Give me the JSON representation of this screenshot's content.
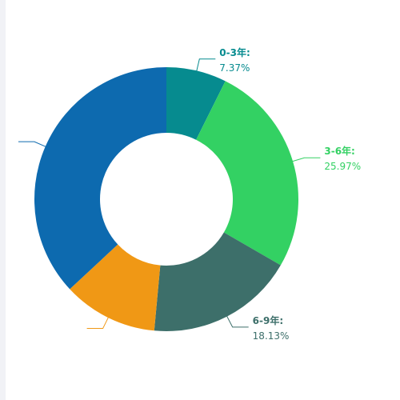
{
  "chart_data": {
    "type": "pie",
    "variant": "donut",
    "slices": [
      {
        "label": "0-3年:",
        "percent": "7.37%",
        "value": 7.37,
        "color": "#068b8f",
        "label_color": "#068b8f"
      },
      {
        "label": "3-6年:",
        "percent": "25.97%",
        "value": 25.97,
        "color": "#33d163",
        "label_color": "#33d163"
      },
      {
        "label": "6-9年:",
        "percent": "18.13%",
        "value": 18.13,
        "color": "#3d6f6a",
        "label_color": "#3d6f6a"
      },
      {
        "label": "",
        "percent": "",
        "value": 11.6,
        "color": "#f09815",
        "label_color": "#f09815"
      },
      {
        "label": "",
        "percent": "",
        "value": 36.93,
        "color": "#0d6aaf",
        "label_color": "#0d6aaf"
      }
    ],
    "legend": "none"
  }
}
